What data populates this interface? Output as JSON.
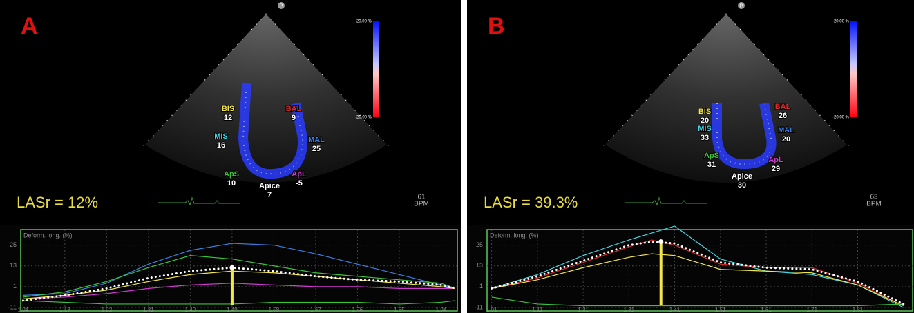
{
  "panels": [
    {
      "letter": "A",
      "lasr": "LASr = 12%",
      "marker_label": "P",
      "bpm_value": "61",
      "bpm_unit": "BPM",
      "scale_top": "20.00 %",
      "scale_bottom": "-20.00 %",
      "segments": [
        {
          "name": "BIS",
          "value": 12,
          "color": "#f2e64a"
        },
        {
          "name": "MIS",
          "value": 16,
          "color": "#3fd7e6"
        },
        {
          "name": "ApS",
          "value": 10,
          "color": "#3cc43c"
        },
        {
          "name": "Apice",
          "value": 7,
          "color": "#ffffff"
        },
        {
          "name": "ApL",
          "value": -5,
          "color": "#d23ad2"
        },
        {
          "name": "MAL",
          "value": 25,
          "color": "#3d7fe0"
        },
        {
          "name": "BAL",
          "value": 9,
          "color": "#e02828"
        }
      ],
      "chart": {
        "type": "line",
        "axis_label": "Deform. long. (%)",
        "grid": true,
        "xlim": [
          1.035,
          1.975
        ],
        "ylim": [
          -13,
          34
        ],
        "xticks": [
          1.04,
          1.13,
          1.22,
          1.31,
          {
            "value": 1.4,
            "label": "1.40"
          },
          1.49,
          1.58,
          1.67,
          1.76,
          1.85,
          1.94
        ],
        "yticks": [
          25,
          13,
          1,
          -11
        ],
        "x": [
          1.04,
          1.13,
          1.22,
          1.31,
          1.4,
          1.49,
          1.58,
          1.67,
          1.76,
          1.85,
          1.94,
          1.97
        ],
        "series": [
          {
            "color": "#3d7fe0",
            "values": [
              -4,
              -3,
              3,
              14,
              22,
              26,
              25,
              20,
              14,
              8,
              2,
              0
            ]
          },
          {
            "color": "#3cc43c",
            "values": [
              -5,
              -2,
              4,
              12,
              19,
              17,
              13,
              9,
              7,
              5,
              3,
              0
            ]
          },
          {
            "color": "#d23ad2",
            "values": [
              -6,
              -5,
              -3,
              0,
              2,
              3,
              2,
              1,
              1,
              0,
              0,
              0
            ]
          },
          {
            "color": "#f2e64a",
            "values": [
              -6,
              -4,
              -1,
              4,
              8,
              10,
              9,
              7,
              5,
              3,
              1,
              0
            ]
          },
          {
            "color": "#3cc43c",
            "values": [
              -7,
              -8,
              -9,
              -9,
              -9,
              -9,
              -8,
              -8,
              -8,
              -9,
              -8,
              -7
            ]
          },
          {
            "color": "#ffffff",
            "dotted": true,
            "values": [
              -7,
              -4,
              0,
              6,
              10,
              12,
              10,
              7,
              5,
              4,
              2,
              0
            ]
          }
        ],
        "peak": {
          "x": 1.49,
          "value": 12
        }
      }
    },
    {
      "letter": "B",
      "lasr": "LASr = 39.3%",
      "marker_label": "P",
      "bpm_value": "63",
      "bpm_unit": "BPM",
      "scale_top": "20.00 %",
      "scale_bottom": "-20.00 %",
      "segments": [
        {
          "name": "BIS",
          "value": 20,
          "color": "#f2e64a"
        },
        {
          "name": "MIS",
          "value": 33,
          "color": "#3fd7e6"
        },
        {
          "name": "ApS",
          "value": 31,
          "color": "#3cc43c"
        },
        {
          "name": "Apice",
          "value": 30,
          "color": "#ffffff"
        },
        {
          "name": "ApL",
          "value": 29,
          "color": "#d23ad2"
        },
        {
          "name": "MAL",
          "value": 20,
          "color": "#3d7fe0"
        },
        {
          "name": "BAL",
          "value": 26,
          "color": "#e02828"
        }
      ],
      "chart": {
        "type": "line",
        "axis_label": "Deform. long. (%)",
        "grid": true,
        "xlim": [
          1.0,
          1.93
        ],
        "ylim": [
          -13,
          34
        ],
        "xticks": [
          1.01,
          1.11,
          1.21,
          1.31,
          1.41,
          1.51,
          1.61,
          1.71,
          1.81
        ],
        "yticks": [
          25,
          13,
          1,
          -11
        ],
        "x": [
          1.01,
          1.11,
          1.21,
          1.31,
          1.36,
          1.41,
          1.51,
          1.61,
          1.71,
          1.81,
          1.91
        ],
        "series": [
          {
            "color": "#3fd7e6",
            "values": [
              0,
              8,
              19,
              28,
              32,
              36,
              17,
              10,
              8,
              2,
              -11
            ]
          },
          {
            "color": "#e02828",
            "values": [
              0,
              6,
              15,
              24,
              28,
              25,
              14,
              12,
              12,
              3,
              -10
            ]
          },
          {
            "color": "#f2e64a",
            "values": [
              0,
              5,
              12,
              18,
              20,
              19,
              11,
              10,
              9,
              2,
              -10
            ]
          },
          {
            "color": "#3cc43c",
            "values": [
              -5,
              -9,
              -10,
              -10,
              -10,
              -10,
              -10,
              -10,
              -10,
              -10,
              -9
            ]
          },
          {
            "color": "#ffffff",
            "dotted": true,
            "values": [
              0,
              7,
              16,
              25,
              27,
              26,
              15,
              12,
              11,
              4,
              -9
            ]
          }
        ],
        "peak": {
          "x": 1.38,
          "value": 27
        }
      }
    }
  ]
}
